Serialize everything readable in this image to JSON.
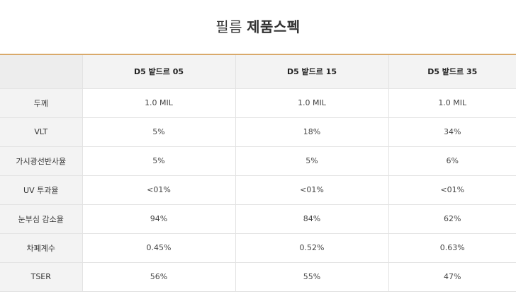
{
  "title": {
    "light": "필름",
    "bold": "제품스펙"
  },
  "colors": {
    "accent": "#d9a96a",
    "header_bg": "#f3f3f3",
    "border": "#e3e3e3"
  },
  "table": {
    "columns": [
      "D5 밭드르 05",
      "D5 밭드르 15",
      "D5 밭드르 35"
    ],
    "rows": [
      {
        "label": "두께",
        "values": [
          "1.0 MIL",
          "1.0 MIL",
          "1.0 MIL"
        ]
      },
      {
        "label": "VLT",
        "values": [
          "5%",
          "18%",
          "34%"
        ]
      },
      {
        "label": "가시광선반사율",
        "values": [
          "5%",
          "5%",
          "6%"
        ]
      },
      {
        "label": "UV 투과율",
        "values": [
          "<01%",
          "<01%",
          "<01%"
        ]
      },
      {
        "label": "눈부심 감소율",
        "values": [
          "94%",
          "84%",
          "62%"
        ]
      },
      {
        "label": "차폐계수",
        "values": [
          "0.45%",
          "0.52%",
          "0.63%"
        ]
      },
      {
        "label": "TSER",
        "values": [
          "56%",
          "55%",
          "47%"
        ]
      }
    ]
  }
}
